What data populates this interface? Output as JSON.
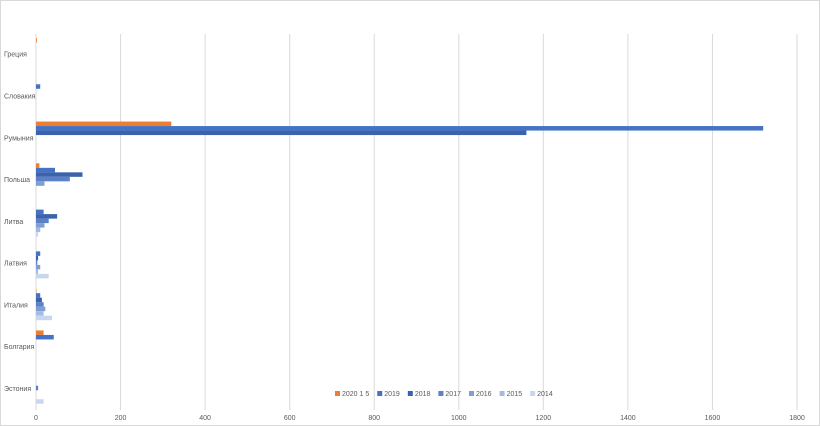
{
  "chart_data": {
    "type": "hbar",
    "categories": [
      "Греция",
      "Словакия",
      "Румыния",
      "Польша",
      "Литва",
      "Латвия",
      "Италия",
      "Болгария",
      "Эстония"
    ],
    "series": [
      {
        "name": "2020 1 5",
        "color": "#ed7d31",
        "values": [
          2,
          0,
          320,
          8,
          0,
          0,
          1,
          18,
          0
        ]
      },
      {
        "name": "2019",
        "color": "#4472c4",
        "values": [
          0,
          10,
          1720,
          45,
          18,
          10,
          10,
          42,
          0
        ]
      },
      {
        "name": "2018",
        "color": "#3a62ad",
        "values": [
          0,
          0,
          1160,
          110,
          50,
          5,
          14,
          0,
          0
        ]
      },
      {
        "name": "2017",
        "color": "#5b80c8",
        "values": [
          0,
          0,
          0,
          80,
          30,
          3,
          18,
          0,
          5
        ]
      },
      {
        "name": "2016",
        "color": "#7f9ed6",
        "values": [
          0,
          0,
          0,
          20,
          20,
          10,
          22,
          0,
          0
        ]
      },
      {
        "name": "2015",
        "color": "#a5bbe3",
        "values": [
          0,
          0,
          0,
          0,
          10,
          5,
          18,
          0,
          0
        ]
      },
      {
        "name": "2014",
        "color": "#c9d6ef",
        "values": [
          0,
          0,
          0,
          0,
          5,
          30,
          38,
          0,
          18
        ]
      }
    ],
    "xlim": [
      0,
      1800
    ],
    "xticks": [
      0,
      200,
      400,
      600,
      800,
      1000,
      1200,
      1400,
      1600,
      1800
    ],
    "grid": true
  }
}
